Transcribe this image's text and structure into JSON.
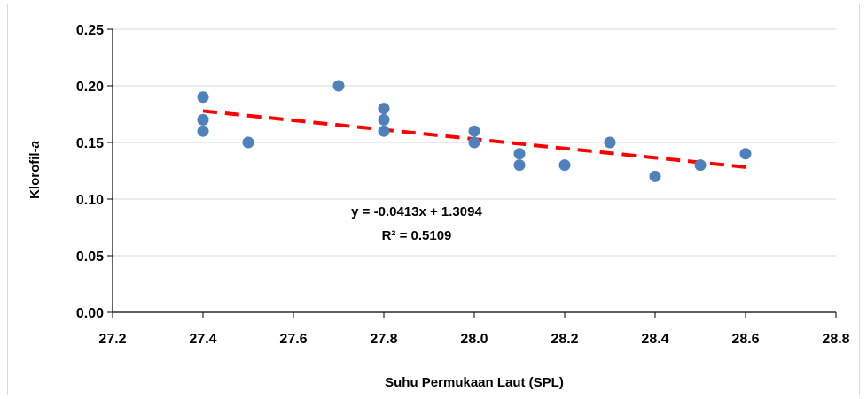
{
  "chart_data": {
    "type": "scatter",
    "xlabel": "Suhu Permukaan Laut (SPL)",
    "ylabel_main": "Klorofil-",
    "ylabel_italic": "a",
    "xlim": [
      27.2,
      28.8
    ],
    "ylim": [
      0.0,
      0.25
    ],
    "x_ticks": [
      "27.2",
      "27.4",
      "27.6",
      "27.8",
      "28.0",
      "28.2",
      "28.4",
      "28.6",
      "28.8"
    ],
    "y_ticks": [
      "0.00",
      "0.05",
      "0.10",
      "0.15",
      "0.20",
      "0.25"
    ],
    "grid": "horizontal",
    "points_color": "#4f81bd",
    "series": [
      {
        "x": [
          27.4,
          27.4,
          27.4,
          27.5,
          27.7,
          27.8,
          27.8,
          27.8,
          28.0,
          28.0,
          28.1,
          28.1,
          28.2,
          28.3,
          28.4,
          28.5,
          28.6
        ],
        "y": [
          0.19,
          0.17,
          0.16,
          0.15,
          0.2,
          0.18,
          0.17,
          0.16,
          0.16,
          0.15,
          0.14,
          0.13,
          0.13,
          0.15,
          0.12,
          0.13,
          0.14
        ]
      }
    ],
    "trendline": {
      "slope": -0.0413,
      "intercept": 1.3094,
      "x_range": [
        27.4,
        28.6
      ],
      "color": "#ff0000",
      "style": "dashed"
    },
    "annotations": {
      "equation": "y = -0.0413x + 1.3094",
      "r_squared": "R² = 0.5109"
    }
  }
}
